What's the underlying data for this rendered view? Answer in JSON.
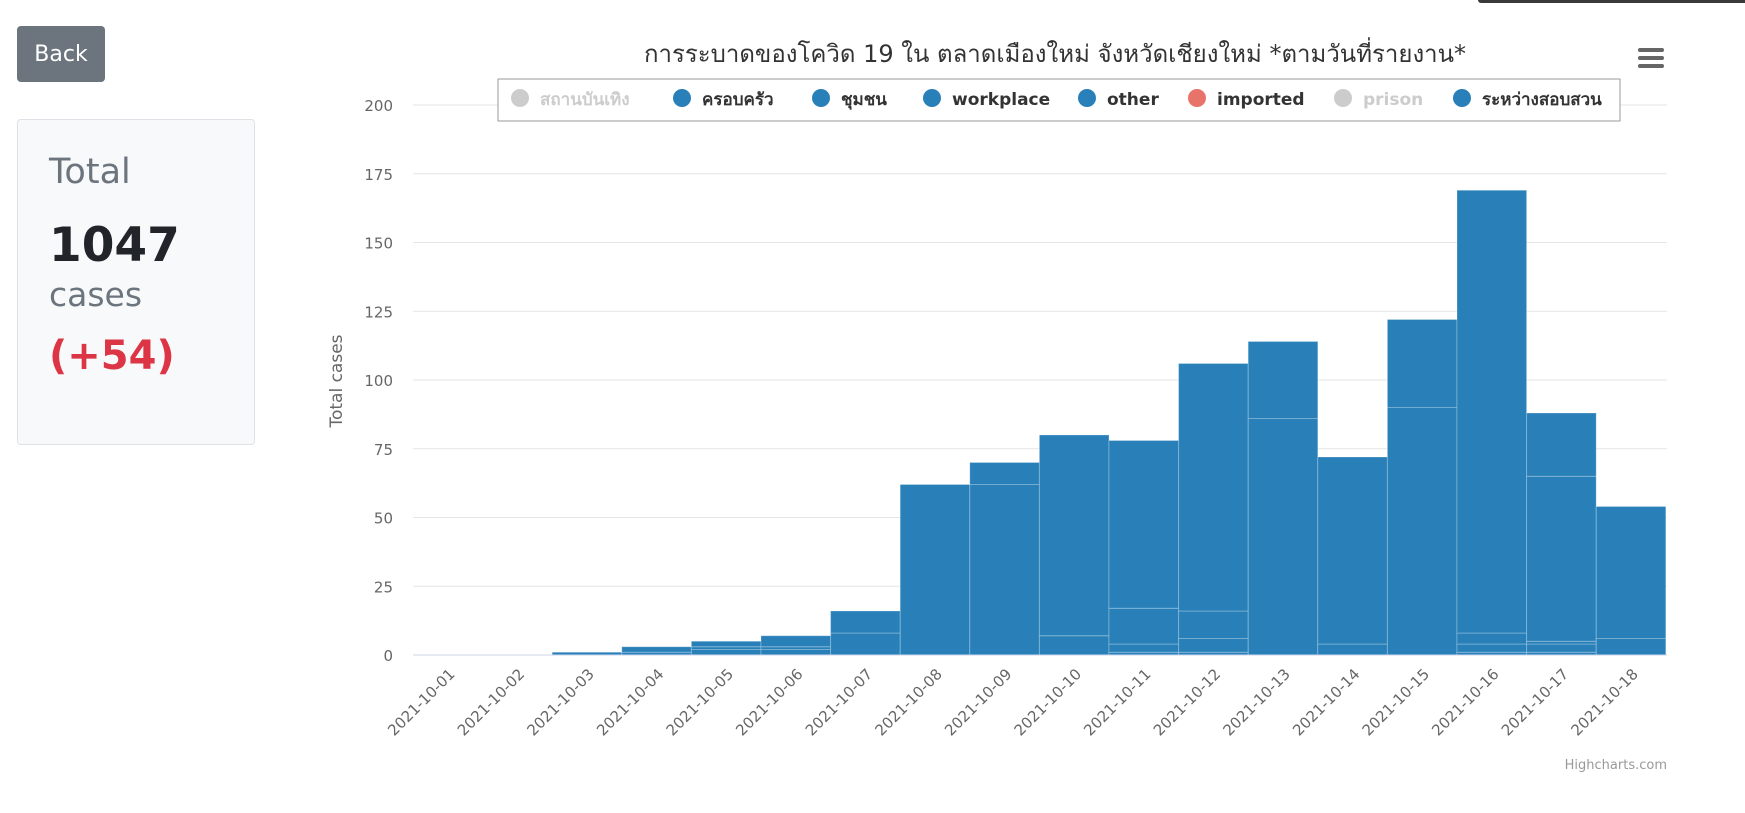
{
  "back_button": {
    "label": "Back"
  },
  "total_card": {
    "label": "Total",
    "value": "1047",
    "unit": "cases",
    "change": "(+54)"
  },
  "colors": {
    "series": "#2980b9",
    "imported": "#e8736b",
    "hidden": "#cccccc",
    "change": "#dc3545"
  },
  "chart_data": {
    "type": "bar",
    "stacked": true,
    "title": "การระบาดของโควิด 19 ใน ตลาดเมืองใหม่ จังหวัดเชียงใหม่ *ตามวันที่รายงาน*",
    "ylabel": "Total cases",
    "xlabel": "",
    "ylim": [
      0,
      200
    ],
    "yticks": [
      0,
      25,
      50,
      75,
      100,
      125,
      150,
      175,
      200
    ],
    "grid": true,
    "legend_position": "top",
    "credits": "Highcharts.com",
    "categories": [
      "2021-10-01",
      "2021-10-02",
      "2021-10-03",
      "2021-10-04",
      "2021-10-05",
      "2021-10-06",
      "2021-10-07",
      "2021-10-08",
      "2021-10-09",
      "2021-10-10",
      "2021-10-11",
      "2021-10-12",
      "2021-10-13",
      "2021-10-14",
      "2021-10-15",
      "2021-10-16",
      "2021-10-17",
      "2021-10-18"
    ],
    "legend": [
      {
        "name": "สถานบันเทิง",
        "color": "#cccccc",
        "visible": false
      },
      {
        "name": "ครอบครัว",
        "color": "#2980b9",
        "visible": true
      },
      {
        "name": "ชุมชน",
        "color": "#2980b9",
        "visible": true
      },
      {
        "name": "workplace",
        "color": "#2980b9",
        "visible": true
      },
      {
        "name": "other",
        "color": "#2980b9",
        "visible": true
      },
      {
        "name": "imported",
        "color": "#e8736b",
        "visible": true
      },
      {
        "name": "prison",
        "color": "#cccccc",
        "visible": false
      },
      {
        "name": "ระหว่างสอบสวน",
        "color": "#2980b9",
        "visible": true
      }
    ],
    "series": [
      {
        "name": "ครอบครัว",
        "values": [
          0,
          0,
          0,
          0,
          2,
          2,
          0,
          0,
          0,
          0,
          1,
          1,
          0,
          0,
          0,
          1,
          1,
          0
        ]
      },
      {
        "name": "ชุมชน",
        "values": [
          0,
          0,
          0,
          0,
          0,
          0,
          0,
          0,
          0,
          0,
          3,
          5,
          0,
          4,
          0,
          3,
          3,
          6
        ]
      },
      {
        "name": "workplace",
        "values": [
          0,
          0,
          0,
          1,
          1,
          1,
          8,
          0,
          0,
          7,
          13,
          10,
          0,
          0,
          0,
          4,
          1,
          0
        ]
      },
      {
        "name": "other",
        "values": [
          0,
          0,
          0,
          0,
          0,
          0,
          0,
          0,
          62,
          0,
          0,
          0,
          86,
          0,
          90,
          0,
          60,
          0
        ]
      },
      {
        "name": "ระหว่างสอบสวน",
        "values": [
          0,
          0,
          1,
          2,
          2,
          4,
          8,
          62,
          8,
          73,
          61,
          90,
          28,
          68,
          32,
          161,
          23,
          48
        ]
      }
    ],
    "totals": [
      0,
      0,
      1,
      3,
      5,
      7,
      16,
      62,
      70,
      80,
      78,
      106,
      114,
      72,
      122,
      169,
      88,
      54
    ]
  }
}
